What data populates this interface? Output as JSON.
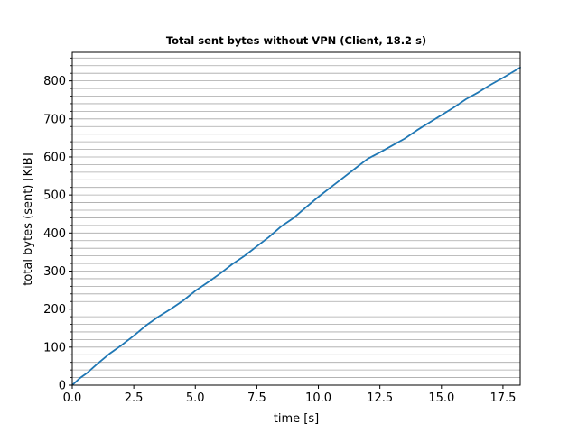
{
  "chart_data": {
    "type": "line",
    "title": "Total sent bytes without VPN (Client, 18.2 s)",
    "xlabel": "time [s]",
    "ylabel": "total bytes (sent) [KiB]",
    "xlim": [
      0,
      18.2
    ],
    "ylim": [
      0,
      875
    ],
    "xticks": [
      0,
      2.5,
      5,
      7.5,
      10,
      12.5,
      15,
      17.5
    ],
    "xtick_labels": [
      "0.0",
      "2.5",
      "5.0",
      "7.5",
      "10.0",
      "12.5",
      "15.0",
      "17.5"
    ],
    "yticks": [
      0,
      100,
      200,
      300,
      400,
      500,
      600,
      700,
      800
    ],
    "ytick_labels": [
      "0",
      "100",
      "200",
      "300",
      "400",
      "500",
      "600",
      "700",
      "800"
    ],
    "grid": "horizontal-minor",
    "line_color": "#1f77b4",
    "series": [
      {
        "x": [
          0,
          0.3,
          0.6,
          1.0,
          1.5,
          2.0,
          2.5,
          3.0,
          3.5,
          4.0,
          4.5,
          5.0,
          5.5,
          6.0,
          6.5,
          7.0,
          7.5,
          8.0,
          8.5,
          9.0,
          9.5,
          10.0,
          10.5,
          11.0,
          11.5,
          12.0,
          12.5,
          13.0,
          13.5,
          14.0,
          14.5,
          15.0,
          15.5,
          16.0,
          16.5,
          17.0,
          17.5,
          18.2
        ],
        "y": [
          0,
          18,
          32,
          55,
          82,
          105,
          130,
          157,
          180,
          200,
          222,
          248,
          270,
          293,
          318,
          340,
          365,
          390,
          418,
          440,
          468,
          495,
          520,
          545,
          570,
          595,
          612,
          630,
          648,
          670,
          690,
          710,
          730,
          752,
          770,
          790,
          808,
          835
        ]
      }
    ]
  }
}
